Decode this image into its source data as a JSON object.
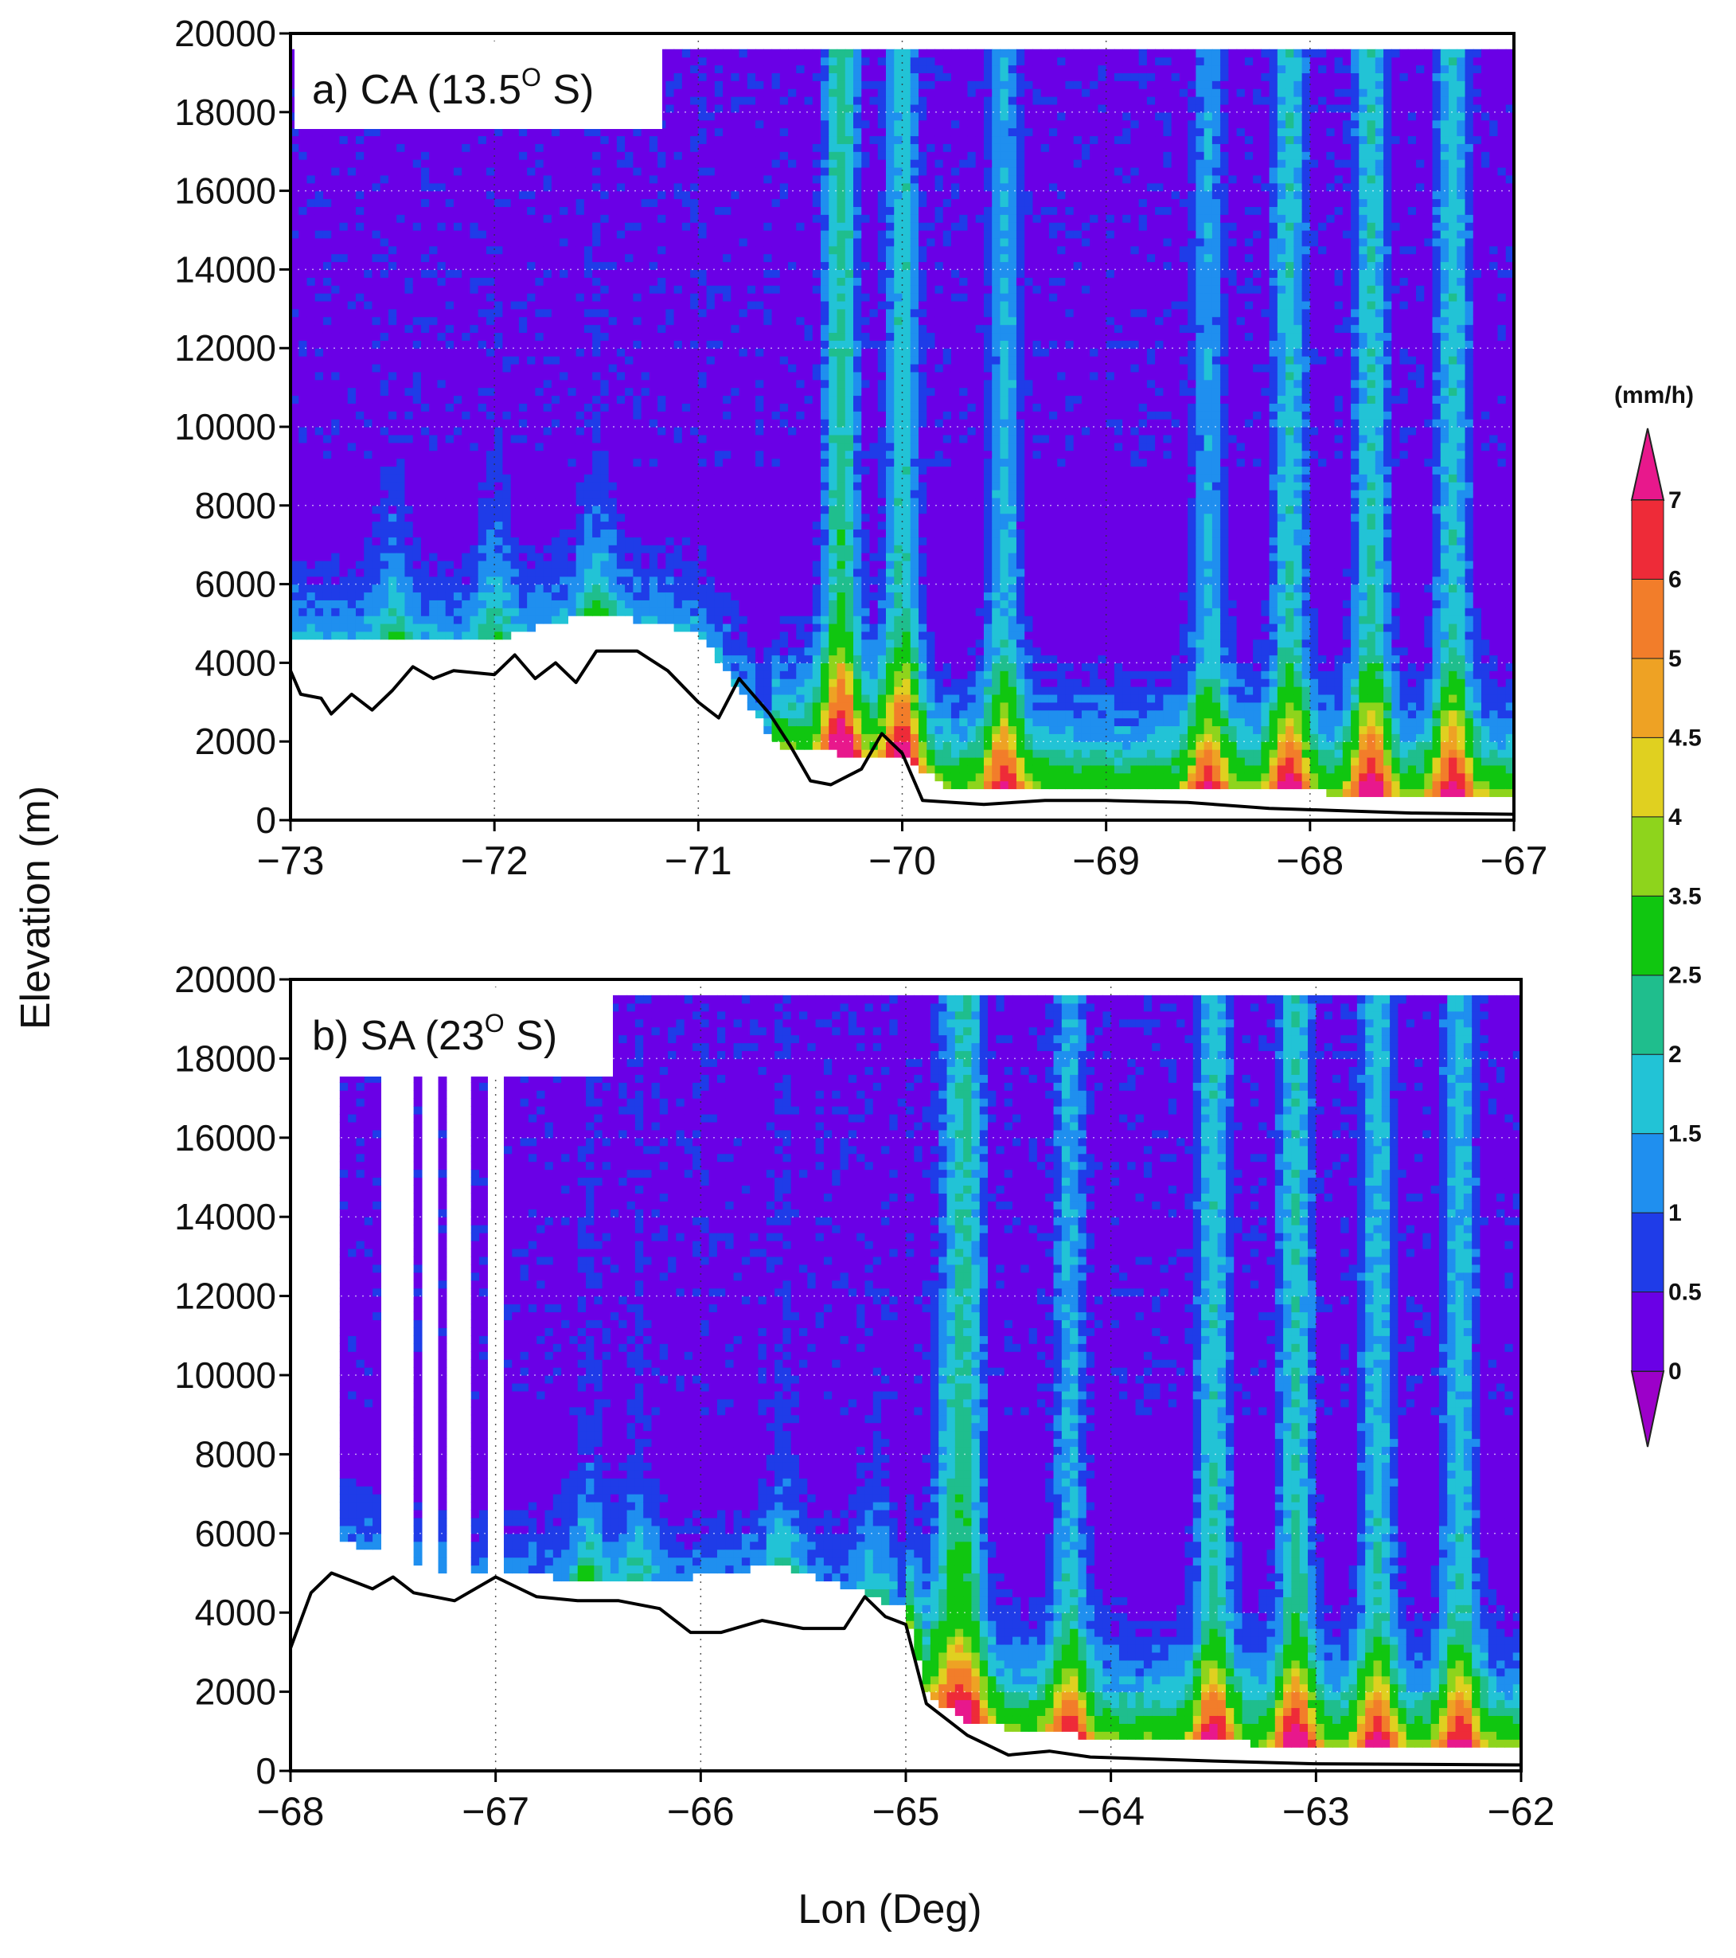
{
  "chart_data": {
    "type": "heatmap",
    "shared": {
      "ylabel": "Elevation  (m)",
      "xlabel": "Lon (Deg)",
      "yticks": [
        "0",
        "2000",
        "4000",
        "6000",
        "8000",
        "10000",
        "12000",
        "14000",
        "16000",
        "18000",
        "20000"
      ],
      "ylim": [
        0,
        20000
      ],
      "grid": true
    },
    "colorbar": {
      "units": "(mm/h)",
      "levels": [
        "0",
        "0.5",
        "1",
        "1.5",
        "2",
        "2.5",
        "3.5",
        "4",
        "4.5",
        "5",
        "6",
        "7"
      ],
      "colors": [
        "#9c00c9",
        "#6a00e6",
        "#1f3ce8",
        "#1f8fef",
        "#22c3d6",
        "#1fbe8d",
        "#10c610",
        "#8ed41c",
        "#e0d020",
        "#eea224",
        "#f27d2a",
        "#ee2b38",
        "#e8188c"
      ],
      "extend": "both"
    },
    "panels": [
      {
        "label": "a) CA (13.5",
        "label_sup": "O",
        "label_end": " S)",
        "xticks": [
          "−73",
          "−72",
          "−71",
          "−70",
          "−69",
          "−68",
          "−67"
        ],
        "xlim": [
          -73,
          -67
        ],
        "terrain": [
          [
            -73.0,
            3800
          ],
          [
            -72.95,
            3200
          ],
          [
            -72.85,
            3100
          ],
          [
            -72.8,
            2700
          ],
          [
            -72.7,
            3200
          ],
          [
            -72.6,
            2800
          ],
          [
            -72.5,
            3300
          ],
          [
            -72.4,
            3900
          ],
          [
            -72.3,
            3600
          ],
          [
            -72.2,
            3800
          ],
          [
            -72.0,
            3700
          ],
          [
            -71.9,
            4200
          ],
          [
            -71.8,
            3600
          ],
          [
            -71.7,
            4000
          ],
          [
            -71.6,
            3500
          ],
          [
            -71.5,
            4300
          ],
          [
            -71.3,
            4300
          ],
          [
            -71.15,
            3800
          ],
          [
            -71.0,
            3000
          ],
          [
            -70.9,
            2600
          ],
          [
            -70.8,
            3600
          ],
          [
            -70.65,
            2700
          ],
          [
            -70.55,
            1900
          ],
          [
            -70.45,
            1000
          ],
          [
            -70.35,
            900
          ],
          [
            -70.2,
            1300
          ],
          [
            -70.1,
            2200
          ],
          [
            -70.0,
            1700
          ],
          [
            -69.9,
            500
          ],
          [
            -69.6,
            400
          ],
          [
            -69.3,
            500
          ],
          [
            -69.0,
            500
          ],
          [
            -68.6,
            450
          ],
          [
            -68.2,
            300
          ],
          [
            -67.5,
            180
          ],
          [
            -67.0,
            150
          ]
        ],
        "dry_top": [
          [
            -73.0,
            4700
          ],
          [
            -72.0,
            4600
          ],
          [
            -71.5,
            5300
          ],
          [
            -71.0,
            4800
          ],
          [
            -70.6,
            1800
          ],
          [
            -70.0,
            1600
          ],
          [
            -69.8,
            900
          ],
          [
            -68.8,
            700
          ],
          [
            -68.3,
            900
          ],
          [
            -67.9,
            700
          ],
          [
            -67.0,
            700
          ]
        ],
        "convective_cells": [
          [
            -72.5,
            9200,
            0.9
          ],
          [
            -72.0,
            9800,
            1.0
          ],
          [
            -71.5,
            8500,
            1.2
          ],
          [
            -70.3,
            5200,
            5.5
          ],
          [
            -70.0,
            5000,
            4.6
          ],
          [
            -69.5,
            4400,
            3.8
          ],
          [
            -68.5,
            3800,
            3.6
          ],
          [
            -68.1,
            4000,
            4.5
          ],
          [
            -67.7,
            4300,
            4.8
          ],
          [
            -67.3,
            4200,
            4.4
          ]
        ]
      },
      {
        "label": "b) SA (23",
        "label_sup": "O",
        "label_end": " S)",
        "xticks": [
          "−68",
          "−67",
          "−66",
          "−65",
          "−64",
          "−63",
          "−62"
        ],
        "xlim": [
          -68,
          -62
        ],
        "terrain": [
          [
            -68.0,
            3100
          ],
          [
            -67.9,
            4500
          ],
          [
            -67.8,
            5000
          ],
          [
            -67.6,
            4600
          ],
          [
            -67.5,
            4900
          ],
          [
            -67.4,
            4500
          ],
          [
            -67.2,
            4300
          ],
          [
            -67.0,
            4900
          ],
          [
            -66.8,
            4400
          ],
          [
            -66.6,
            4300
          ],
          [
            -66.4,
            4300
          ],
          [
            -66.2,
            4100
          ],
          [
            -66.05,
            3500
          ],
          [
            -65.9,
            3500
          ],
          [
            -65.7,
            3800
          ],
          [
            -65.5,
            3600
          ],
          [
            -65.3,
            3600
          ],
          [
            -65.2,
            4400
          ],
          [
            -65.1,
            3900
          ],
          [
            -65.0,
            3700
          ],
          [
            -64.9,
            1700
          ],
          [
            -64.7,
            900
          ],
          [
            -64.5,
            400
          ],
          [
            -64.3,
            500
          ],
          [
            -64.1,
            350
          ],
          [
            -63.5,
            250
          ],
          [
            -63.0,
            180
          ],
          [
            -62.0,
            150
          ]
        ],
        "dry_top": [
          [
            -68.0,
            6200
          ],
          [
            -67.2,
            5000
          ],
          [
            -66.2,
            4800
          ],
          [
            -65.6,
            5200
          ],
          [
            -65.0,
            4100
          ],
          [
            -64.9,
            2000
          ],
          [
            -64.7,
            1200
          ],
          [
            -64.0,
            800
          ],
          [
            -63.3,
            700
          ],
          [
            -62.0,
            700
          ]
        ],
        "missing_columns": [
          [
            -67.55,
            -67.42
          ],
          [
            -67.35,
            -67.3
          ],
          [
            -67.22,
            -67.12
          ],
          [
            -67.04,
            -66.98
          ]
        ],
        "convective_cells": [
          [
            -66.55,
            7800,
            1.4
          ],
          [
            -66.3,
            7600,
            1.2
          ],
          [
            -65.6,
            7000,
            1.3
          ],
          [
            -65.15,
            9000,
            1.0
          ],
          [
            -64.8,
            15500,
            1.6
          ],
          [
            -64.7,
            3800,
            4.6
          ],
          [
            -64.2,
            3800,
            3.8
          ],
          [
            -63.5,
            3600,
            4.6
          ],
          [
            -63.1,
            3600,
            4.8
          ],
          [
            -62.7,
            3600,
            4.2
          ],
          [
            -62.3,
            3500,
            4.2
          ]
        ]
      }
    ]
  }
}
